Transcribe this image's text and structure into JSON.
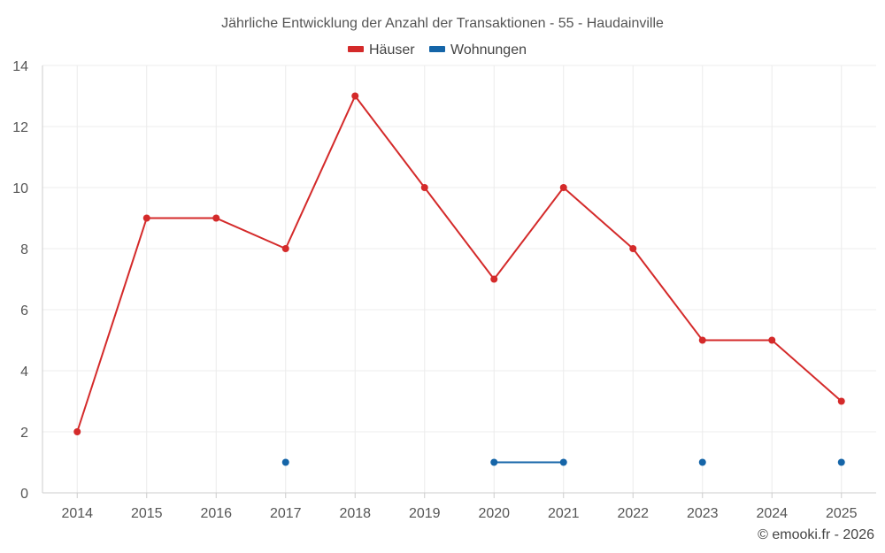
{
  "chart_data": {
    "type": "line",
    "title": "Jährliche Entwicklung der Anzahl der Transaktionen - 55 - Haudainville",
    "categories": [
      "2014",
      "2015",
      "2016",
      "2017",
      "2018",
      "2019",
      "2020",
      "2021",
      "2022",
      "2023",
      "2024",
      "2025"
    ],
    "series": [
      {
        "name": "Häuser",
        "color": "#d42a2a",
        "values": [
          2,
          9,
          9,
          8,
          13,
          10,
          7,
          10,
          8,
          5,
          5,
          3
        ]
      },
      {
        "name": "Wohnungen",
        "color": "#1565a8",
        "values": [
          null,
          null,
          null,
          1,
          null,
          null,
          1,
          1,
          null,
          1,
          null,
          1
        ]
      }
    ],
    "xlabel": "",
    "ylabel": "",
    "ylim": [
      0,
      14
    ],
    "yticks": [
      0,
      2,
      4,
      6,
      8,
      10,
      12,
      14
    ],
    "grid": true,
    "legend_position": "top-center"
  },
  "credit": "© emooki.fr - 2026"
}
